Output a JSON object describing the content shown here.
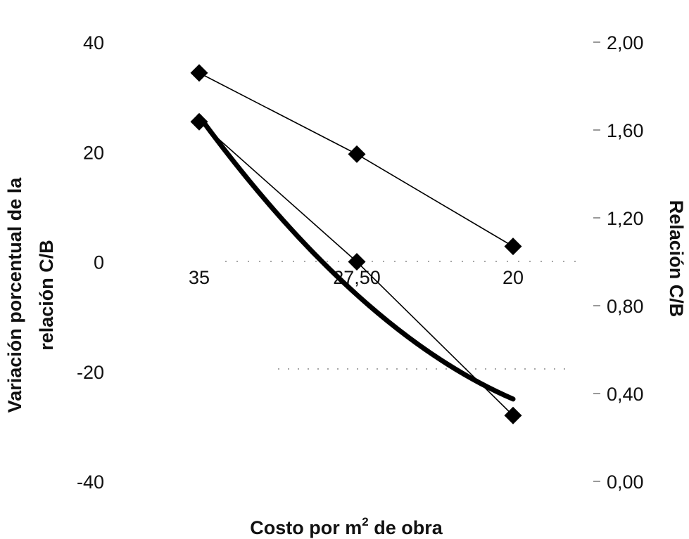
{
  "chart_data": {
    "type": "line",
    "title": "",
    "xlabel": "Costo por m",
    "xlabel_sup": "2",
    "xlabel_tail": " de obra",
    "ylabel_left_lines": [
      "Variación porcentual de la",
      "relación C/B"
    ],
    "ylabel_right": "Relación C/B",
    "categories": [
      "35",
      "27,50",
      "20"
    ],
    "y_left": {
      "lim": [
        -40,
        40
      ],
      "ticks": [
        -40,
        -20,
        0,
        20,
        40
      ],
      "tick_labels": [
        "-40",
        "-20",
        "0",
        "20",
        "40"
      ]
    },
    "y_right": {
      "lim": [
        0,
        2
      ],
      "ticks": [
        0,
        0.4,
        0.8,
        1.2,
        1.6,
        2.0
      ],
      "tick_labels": [
        "0,00",
        "0,40",
        "0,80",
        "1,20",
        "1,60",
        "2,00"
      ]
    },
    "grid": false,
    "series": [
      {
        "axis": "right",
        "marker": "diamond",
        "values": [
          1.86,
          1.49,
          1.07
        ]
      },
      {
        "axis": "left",
        "marker": "diamond",
        "values": [
          25.5,
          0,
          -28
        ]
      },
      {
        "axis": "left",
        "marker": "none",
        "style": "thick-curve",
        "values": [
          26.5,
          -6,
          -25
        ]
      }
    ],
    "colors": {
      "line": "#000000",
      "marker": "#000000",
      "background": "#ffffff"
    }
  }
}
